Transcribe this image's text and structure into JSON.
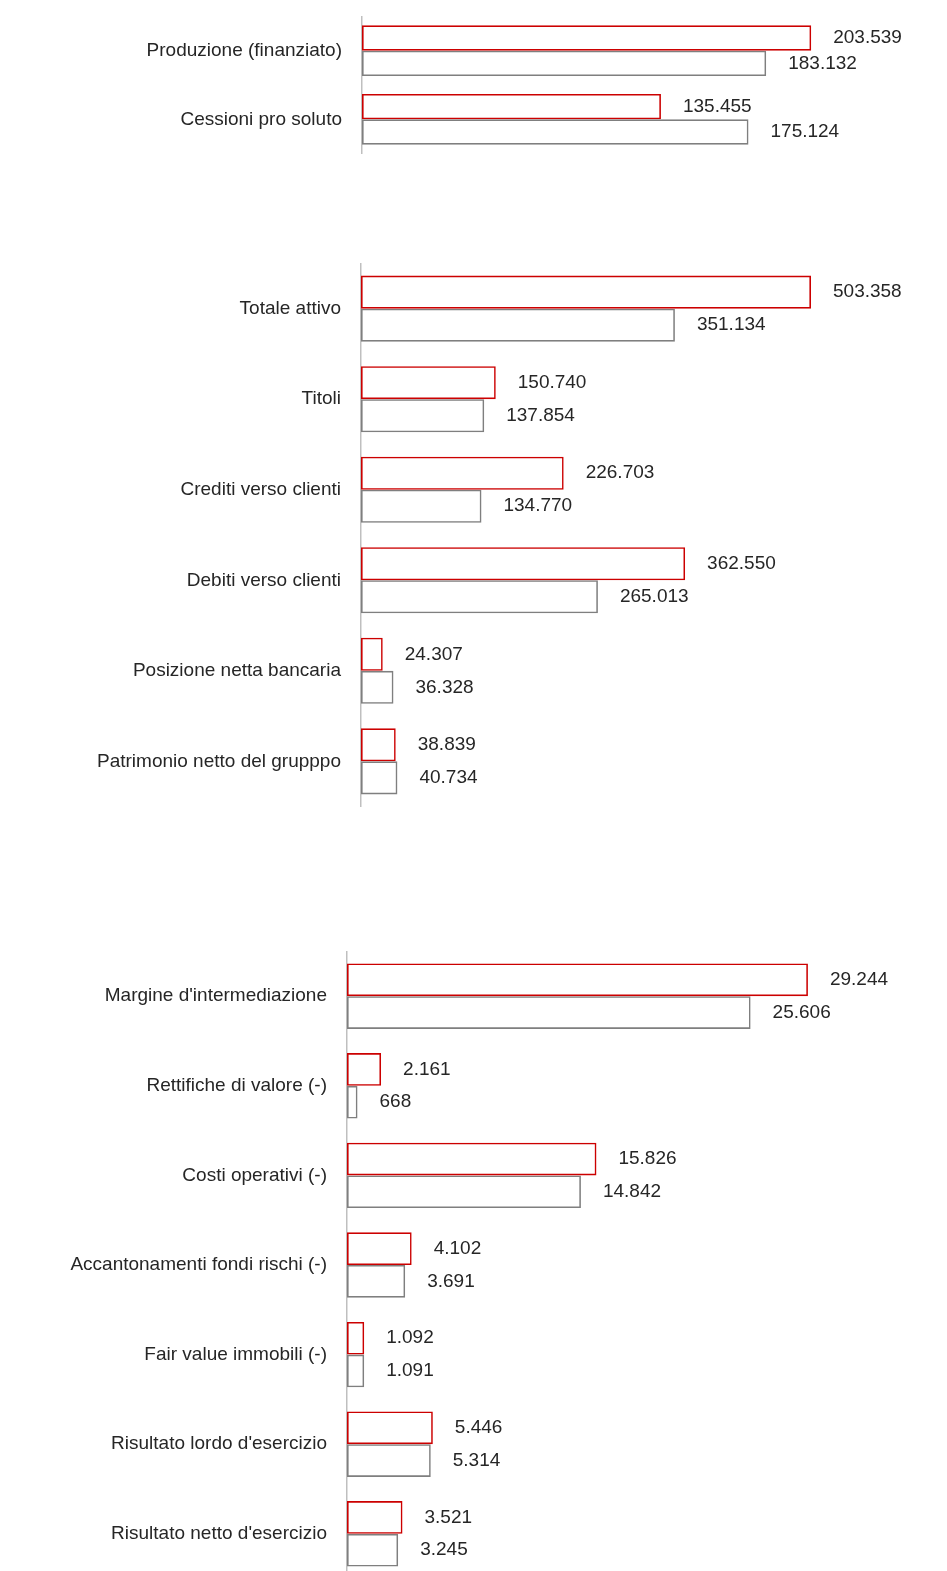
{
  "chart_data": [
    {
      "type": "bar",
      "orientation": "horizontal",
      "categories": [
        "Produzione (finanziato)",
        "Cessioni pro soluto"
      ],
      "legend": false,
      "grid": false,
      "tick_labels": "y",
      "series": [
        {
          "color": "#cc0000",
          "values": [
            203539,
            135455
          ],
          "value_labels": [
            "203.539",
            "135.455"
          ]
        },
        {
          "color": "#7f7f7f",
          "values": [
            183132,
            175124
          ],
          "value_labels": [
            "183.132",
            "175.124"
          ]
        }
      ]
    },
    {
      "type": "bar",
      "orientation": "horizontal",
      "categories": [
        "Totale attivo",
        "Titoli",
        "Crediti verso clienti",
        "Debiti verso clienti",
        "Posizione netta bancaria",
        "Patrimonio netto del grupppo"
      ],
      "legend": false,
      "grid": false,
      "tick_labels": "y",
      "series": [
        {
          "color": "#cc0000",
          "values": [
            503358,
            150740,
            226703,
            362550,
            24307,
            38839
          ],
          "value_labels": [
            "503.358",
            "150.740",
            "226.703",
            "362.550",
            "24.307",
            "38.839"
          ]
        },
        {
          "color": "#7f7f7f",
          "values": [
            351134,
            137854,
            134770,
            265013,
            36328,
            40734
          ],
          "value_labels": [
            "351.134",
            "137.854",
            "134.770",
            "265.013",
            "36.328",
            "40.734"
          ]
        }
      ]
    },
    {
      "type": "bar",
      "orientation": "horizontal",
      "categories": [
        "Margine d'intermediazione",
        "Rettifiche di valore (-)",
        "Costi operativi (-)",
        "Accantonamenti fondi rischi (-)",
        "Fair value immobili (-)",
        "Risultato lordo d'esercizio",
        "Risultato netto d'esercizio"
      ],
      "legend": false,
      "grid": false,
      "tick_labels": "y",
      "series": [
        {
          "color": "#cc0000",
          "values": [
            29244,
            2161,
            15826,
            4102,
            1092,
            5446,
            3521
          ],
          "value_labels": [
            "29.244",
            "2.161",
            "15.826",
            "4.102",
            "1.092",
            "5.446",
            "3.521"
          ]
        },
        {
          "color": "#7f7f7f",
          "values": [
            25606,
            668,
            14842,
            3691,
            1091,
            5314,
            3245
          ],
          "value_labels": [
            "25.606",
            "668",
            "14.842",
            "3.691",
            "1.091",
            "5.314",
            "3.245"
          ]
        }
      ]
    }
  ]
}
